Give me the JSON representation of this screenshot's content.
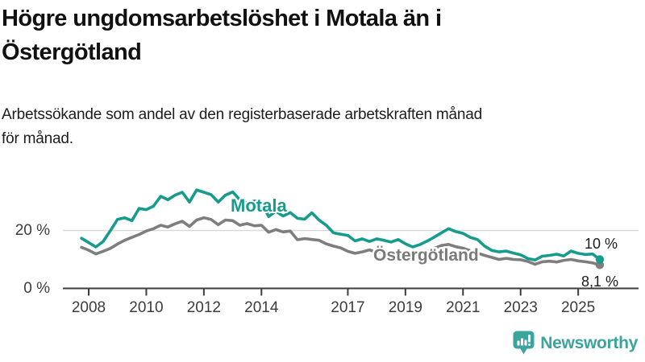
{
  "header": {
    "title_line1": "Högre ungdomsarbetslöshet i Motala än i",
    "title_line2": "Östergötland",
    "subtitle_line1": "Arbetssökande som andel av den registerbaserade arbetskraften månad",
    "subtitle_line2": "för månad."
  },
  "chart_data": {
    "type": "line",
    "title": "Högre ungdomsarbetslöshet i Motala än i Östergötland",
    "subtitle": "Arbetssökande som andel av den registerbaserade arbetskraften månad för månad.",
    "x_unit": "year",
    "y_unit": "%",
    "x_start": 2007.75,
    "x_step": 0.25,
    "x_end": 2025.75,
    "ylim": [
      0,
      40
    ],
    "grid_values": [
      20
    ],
    "legend": "inline series labels",
    "x_ticks": [
      {
        "value": 2008,
        "label": "2008"
      },
      {
        "value": 2010,
        "label": "2010"
      },
      {
        "value": 2012,
        "label": "2012"
      },
      {
        "value": 2014,
        "label": "2014"
      },
      {
        "value": 2017,
        "label": "2017"
      },
      {
        "value": 2019,
        "label": "2019"
      },
      {
        "value": 2021,
        "label": "2021"
      },
      {
        "value": 2023,
        "label": "2023"
      },
      {
        "value": 2025,
        "label": "2025"
      }
    ],
    "y_ticks": [
      {
        "value": 20,
        "label": "20 %"
      },
      {
        "value": 0,
        "label": "0 %"
      }
    ],
    "series": [
      {
        "name": "Motala",
        "color": "#169b8d",
        "end_label": "10 %",
        "values": [
          17.3,
          15.8,
          14.3,
          16.2,
          19.9,
          23.8,
          24.4,
          23.4,
          27.6,
          27.2,
          28.4,
          31.8,
          30.6,
          32.2,
          33.2,
          29.8,
          34.0,
          33.2,
          32.4,
          29.8,
          32.2,
          33.3,
          30.6,
          29.3,
          30.2,
          29.6,
          24.8,
          26.6,
          25.0,
          26.2,
          24.2,
          23.9,
          26.1,
          23.6,
          21.8,
          19.2,
          18.7,
          18.3,
          16.4,
          17.1,
          16.2,
          17.1,
          16.6,
          16.0,
          16.9,
          15.4,
          14.3,
          15.1,
          16.3,
          17.7,
          19.2,
          20.6,
          19.6,
          19.0,
          17.6,
          16.9,
          14.6,
          13.1,
          12.6,
          12.9,
          12.2,
          11.6,
          10.3,
          9.8,
          11.1,
          11.4,
          11.8,
          11.2,
          12.9,
          12.1,
          11.7,
          11.9,
          10.0
        ]
      },
      {
        "name": "Östergötland",
        "color": "#7e7e7e",
        "end_label": "8,1 %",
        "values": [
          14.2,
          13.2,
          11.9,
          12.8,
          13.8,
          15.3,
          16.6,
          17.6,
          18.6,
          19.8,
          20.6,
          21.8,
          21.2,
          22.3,
          23.2,
          21.4,
          23.6,
          24.4,
          23.8,
          22.0,
          23.6,
          23.4,
          21.8,
          22.4,
          21.6,
          21.8,
          19.4,
          20.3,
          19.5,
          19.8,
          16.8,
          17.2,
          16.9,
          16.6,
          15.4,
          14.6,
          14.0,
          12.8,
          12.1,
          12.6,
          13.3,
          12.4,
          12.9,
          12.2,
          12.8,
          12.3,
          11.8,
          12.2,
          12.8,
          13.8,
          14.8,
          15.2,
          14.4,
          13.9,
          13.0,
          12.2,
          11.4,
          10.7,
          10.0,
          10.4,
          10.0,
          9.9,
          9.3,
          8.3,
          9.2,
          9.4,
          9.1,
          9.7,
          10.0,
          9.5,
          9.2,
          8.8,
          8.1
        ]
      }
    ]
  },
  "footer": {
    "brand": "Newsworthy"
  },
  "colors": {
    "motala_line": "#169b8d",
    "ostergotland_line": "#7e7e7e",
    "axis": "#3c3c3c",
    "gridline": "#d9d9d9",
    "title_text": "#111111",
    "brand_teal": "#3ba49c"
  }
}
